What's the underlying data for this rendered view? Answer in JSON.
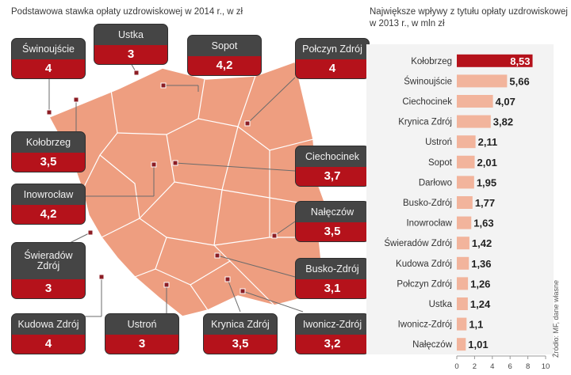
{
  "left_title": "Podstawowa stawka opłaty uzdrowiskowej w 2014 r., w zł",
  "right_title": "Największe wpływy z tytułu opłaty uzdrowiskowej w 2013 r., w mln zł",
  "source": "Źródło: MF, dane własne",
  "colors": {
    "map_fill": "#ee9e80",
    "tag_dark": "#454545",
    "tag_red": "#b5121b",
    "bar_highlight": "#b5121b",
    "bar": "#f2b49c"
  },
  "map_tags": [
    {
      "name": "Świnoujście",
      "value": "4"
    },
    {
      "name": "Ustka",
      "value": "3"
    },
    {
      "name": "Sopot",
      "value": "4,2"
    },
    {
      "name": "Połczyn Zdrój",
      "value": "4"
    },
    {
      "name": "Kołobrzeg",
      "value": "3,5"
    },
    {
      "name": "Ciechocinek",
      "value": "3,7"
    },
    {
      "name": "Inowrocław",
      "value": "4,2"
    },
    {
      "name": "Nałęczów",
      "value": "3,5"
    },
    {
      "name": "Świeradów Zdrój",
      "value": "3"
    },
    {
      "name": "Busko-Zdrój",
      "value": "3,1"
    },
    {
      "name": "Kudowa Zdrój",
      "value": "4"
    },
    {
      "name": "Ustroń",
      "value": "3"
    },
    {
      "name": "Krynica Zdrój",
      "value": "3,5"
    },
    {
      "name": "Iwonicz-Zdrój",
      "value": "3,2"
    }
  ],
  "chart_data": {
    "type": "bar",
    "orientation": "horizontal",
    "title": "Największe wpływy z tytułu opłaty uzdrowiskowej w 2013 r., w mln zł",
    "categories": [
      "Kołobrzeg",
      "Świnoujście",
      "Ciechocinek",
      "Krynica Zdrój",
      "Ustroń",
      "Sopot",
      "Darłowo",
      "Busko-Zdrój",
      "Inowrocław",
      "Świeradów Zdrój",
      "Kudowa Zdrój",
      "Połczyn Zdrój",
      "Ustka",
      "Iwonicz-Zdrój",
      "Nałęczów"
    ],
    "values": [
      8.53,
      5.66,
      4.07,
      3.82,
      2.11,
      2.01,
      1.95,
      1.77,
      1.63,
      1.42,
      1.36,
      1.26,
      1.24,
      1.1,
      1.01
    ],
    "value_labels": [
      "8,53",
      "5,66",
      "4,07",
      "3,82",
      "2,11",
      "2,01",
      "1,95",
      "1,77",
      "1,63",
      "1,42",
      "1,36",
      "1,26",
      "1,24",
      "1,1",
      "1,01"
    ],
    "xlim": [
      0,
      10
    ],
    "xticks": [
      0,
      2,
      4,
      6,
      8,
      10
    ],
    "highlight": "Kołobrzeg",
    "grid": false
  }
}
